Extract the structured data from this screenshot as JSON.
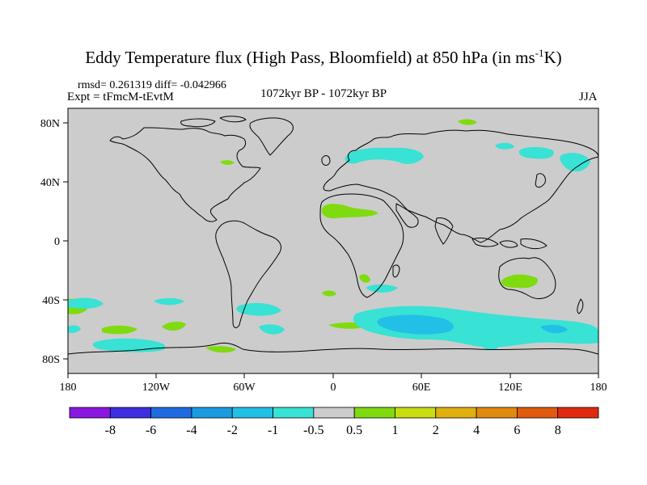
{
  "title": {
    "main": "Eddy Temperature flux (High Pass, Bloomfield) at 850 hPa (in ms",
    "unit_sup": "-1",
    "unit_end": "K)"
  },
  "stats": {
    "text": "rmsd= 0.261319  diff= -0.042966"
  },
  "experiment": {
    "text": "Expt = tFmcM-tEvtM"
  },
  "period": {
    "text": "1072kyr BP - 1072kyr BP"
  },
  "season": {
    "text": "JJA"
  },
  "colors": {
    "land_ocean_bg": "#cccccc",
    "positive_1": "#7fdb10",
    "negative_1": "#38e2d4",
    "negative_2": "#22c0e6",
    "coast": "#000000"
  },
  "axes": {
    "lat_labels": [
      "80N",
      "40N",
      "0",
      "40S",
      "80S"
    ],
    "lon_labels": [
      "180",
      "120W",
      "60W",
      "0",
      "60E",
      "120E",
      "180"
    ]
  },
  "colorbar": {
    "labels": [
      "-8",
      "-6",
      "-4",
      "-2",
      "-1",
      "-0.5",
      "0.5",
      "1",
      "2",
      "4",
      "6",
      "8"
    ],
    "colors": [
      "#8a18e0",
      "#3d2ee0",
      "#1f6be0",
      "#1a9be0",
      "#22c0e6",
      "#38e2d4",
      "#cccccc",
      "#7fdb10",
      "#c9dd10",
      "#e0b010",
      "#e08a10",
      "#e05a10",
      "#e02a10"
    ]
  }
}
